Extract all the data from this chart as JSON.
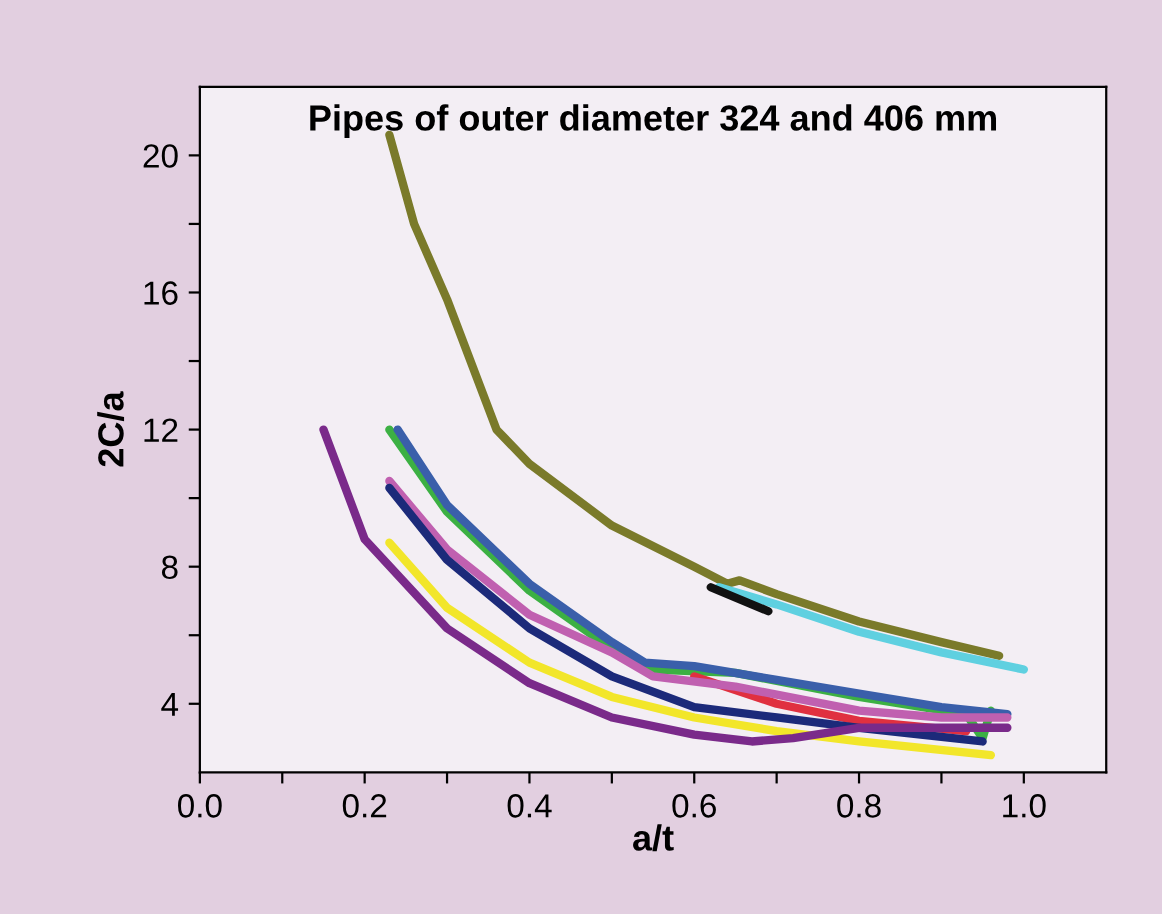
{
  "chart_data": {
    "type": "line",
    "title": "Pipes of outer diameter 324 and 406 mm",
    "xlabel": "a/t",
    "ylabel": "2C/a",
    "xlim": [
      0.0,
      1.1
    ],
    "ylim": [
      2,
      22
    ],
    "xticks": [
      {
        "value": 0.0,
        "label": "0.0"
      },
      {
        "value": 0.1,
        "label": null
      },
      0.2,
      {
        "value": 0.3,
        "label": null
      },
      0.4,
      {
        "value": 0.5,
        "label": null
      },
      0.6,
      {
        "value": 0.7,
        "label": null
      },
      0.8,
      {
        "value": 0.9,
        "label": null
      },
      {
        "value": 1.0,
        "label": "1.0"
      }
    ],
    "yticks": [
      4,
      {
        "value": 6,
        "label": null
      },
      8,
      {
        "value": 10,
        "label": null
      },
      12,
      {
        "value": 14,
        "label": null
      },
      16,
      {
        "value": 18,
        "label": null
      },
      20
    ],
    "grid": false,
    "marker": "none",
    "line_style": "solid",
    "series": [
      {
        "color": "#7a7a2a",
        "x": [
          0.23,
          0.26,
          0.3,
          0.36,
          0.4,
          0.5,
          0.6,
          0.64,
          0.655,
          0.7,
          0.8,
          0.9,
          0.97
        ],
        "values": [
          20.6,
          18,
          15.8,
          12,
          11,
          9.2,
          8,
          7.5,
          7.6,
          7.2,
          6.4,
          5.8,
          5.4
        ]
      },
      {
        "color": "#5fd0e0",
        "x": [
          0.63,
          0.7,
          0.8,
          0.9,
          1.0
        ],
        "values": [
          7.4,
          6.9,
          6.1,
          5.5,
          5.0
        ]
      },
      {
        "color": "#111111",
        "x": [
          0.62,
          0.69
        ],
        "values": [
          7.4,
          6.7
        ]
      },
      {
        "color": "#3cb043",
        "x": [
          0.23,
          0.3,
          0.4,
          0.5,
          0.55,
          0.65,
          0.8,
          0.93,
          0.95,
          0.96
        ],
        "values": [
          12,
          9.6,
          7.3,
          5.6,
          5.0,
          4.9,
          4.2,
          3.7,
          3.0,
          3.8
        ]
      },
      {
        "color": "#3a5faa",
        "x": [
          0.24,
          0.3,
          0.4,
          0.5,
          0.54,
          0.6,
          0.7,
          0.8,
          0.9,
          0.98
        ],
        "values": [
          12,
          9.8,
          7.5,
          5.8,
          5.2,
          5.1,
          4.7,
          4.3,
          3.9,
          3.7
        ]
      },
      {
        "color": "#e03040",
        "x": [
          0.6,
          0.7,
          0.8,
          0.93
        ],
        "values": [
          4.8,
          4.0,
          3.5,
          3.2
        ]
      },
      {
        "color": "#c060b0",
        "x": [
          0.23,
          0.3,
          0.4,
          0.5,
          0.55,
          0.65,
          0.8,
          0.9,
          0.98
        ],
        "values": [
          10.5,
          8.5,
          6.6,
          5.5,
          4.8,
          4.5,
          3.8,
          3.6,
          3.6
        ]
      },
      {
        "color": "#1c2a7a",
        "x": [
          0.23,
          0.3,
          0.4,
          0.5,
          0.6,
          0.7,
          0.8,
          0.95
        ],
        "values": [
          10.3,
          8.2,
          6.2,
          4.8,
          3.9,
          3.6,
          3.3,
          2.9
        ]
      },
      {
        "color": "#f2e62a",
        "x": [
          0.23,
          0.3,
          0.4,
          0.5,
          0.6,
          0.7,
          0.8,
          0.96
        ],
        "values": [
          8.7,
          6.8,
          5.2,
          4.2,
          3.6,
          3.2,
          2.9,
          2.5
        ]
      },
      {
        "color": "#7a2a8a",
        "x": [
          0.15,
          0.2,
          0.3,
          0.4,
          0.5,
          0.6,
          0.67,
          0.72,
          0.8,
          0.9,
          0.98
        ],
        "values": [
          12,
          8.8,
          6.2,
          4.6,
          3.6,
          3.1,
          2.9,
          3.0,
          3.3,
          3.3,
          3.3
        ]
      }
    ]
  }
}
